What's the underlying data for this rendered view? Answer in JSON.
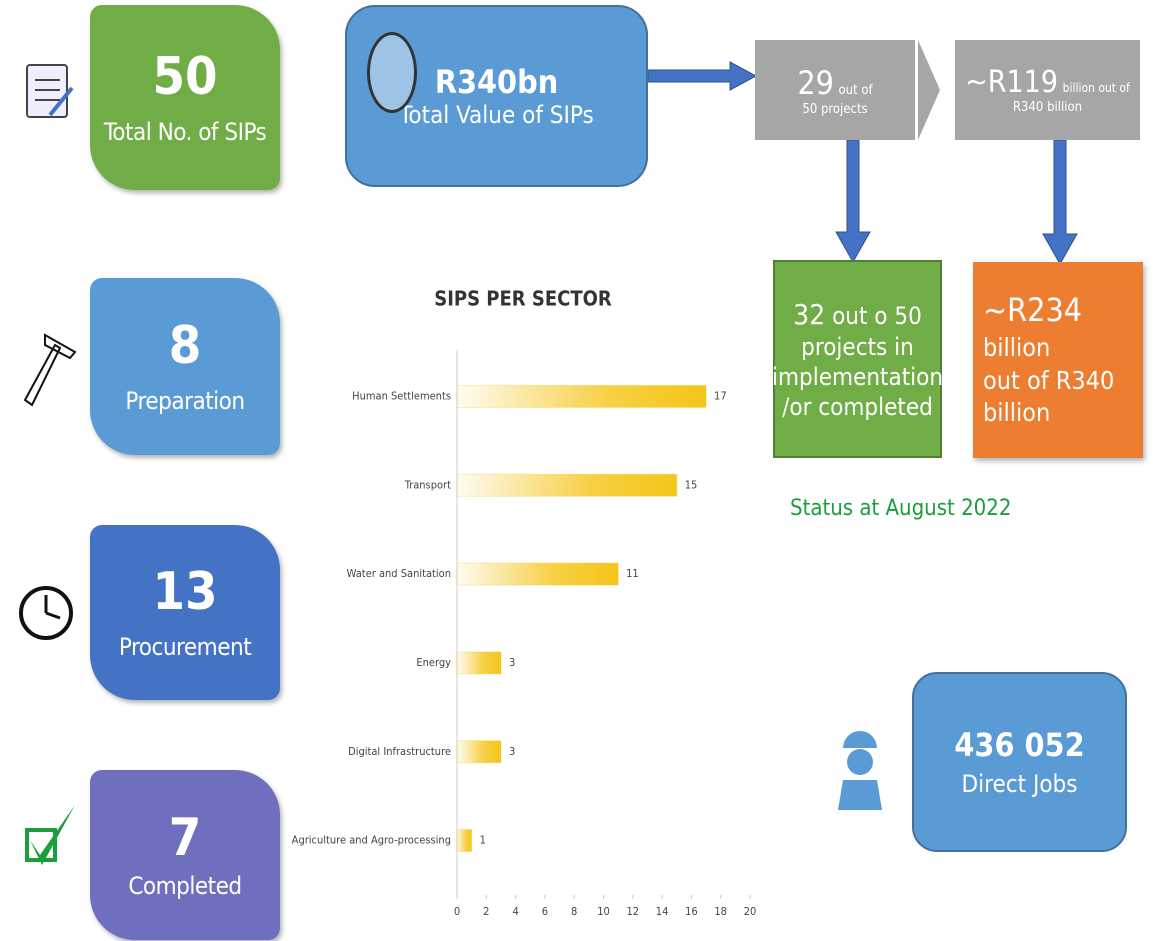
{
  "cards": [
    {
      "value": 50,
      "label": "Total No. of SIPs"
    },
    {
      "value": 8,
      "label": "Preparation"
    },
    {
      "value": 13,
      "label": "Procurement"
    },
    {
      "value": 7,
      "label": "Completed"
    }
  ],
  "total": {
    "value": "R340bn",
    "label": "Total Value of SIPs"
  },
  "flow": {
    "projects": {
      "big": "29",
      "small": "out of",
      "line2": "50 projects"
    },
    "value": {
      "big": "~R119",
      "small": "billion out of",
      "line2": "R340 billion"
    },
    "implementation": {
      "big": "32",
      "rest": "out o 50",
      "lines": [
        "projects in",
        "implementation",
        "/or completed"
      ]
    },
    "implementation_value": {
      "big": "~R234",
      "small": "billion",
      "lines": [
        "out of R340",
        "billion"
      ]
    },
    "status": "Status at August 2022"
  },
  "jobs": {
    "value": "436 052",
    "label": "Direct Jobs"
  },
  "chart_data": {
    "type": "hbar",
    "title": "SIPS PER SECTOR",
    "categories": [
      "Human Settlements",
      "Transport",
      "Water and Sanitation",
      "Energy",
      "Digital Infrastructure",
      "Agriculture and Agro-processing"
    ],
    "values": [
      17,
      15,
      11,
      3,
      3,
      1
    ],
    "color": "#f5c518",
    "xlim": [
      0,
      20
    ],
    "xticks": [
      0,
      2,
      4,
      6,
      8,
      10,
      12,
      14,
      16,
      18,
      20
    ]
  }
}
